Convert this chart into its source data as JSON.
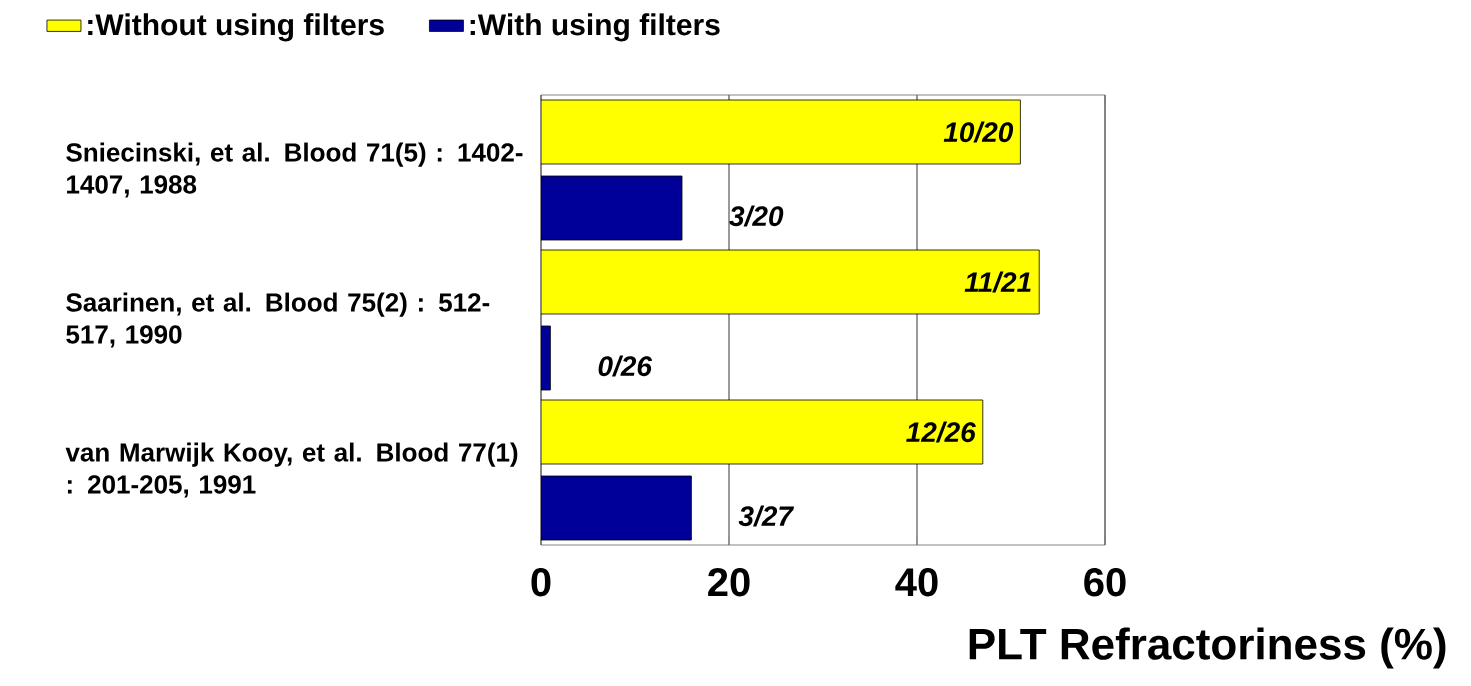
{
  "chart_data": {
    "type": "bar",
    "orientation": "horizontal",
    "xlabel": "PLT Refractoriness (%)",
    "categories": [
      "Sniecinski, et al. Blood 71(5) : 1402-1407, 1988",
      "Saarinen, et al. Blood 75(2) : 512-517, 1990",
      "van Marwijk Kooy, et al. Blood 77(1) : 201-205, 1991"
    ],
    "series": [
      {
        "name": ":Without using filters",
        "color": "#ffff00",
        "values": [
          51,
          53,
          47
        ],
        "value_labels": [
          "10/20",
          "11/21",
          "12/26"
        ]
      },
      {
        "name": ":With using filters",
        "color": "#000099",
        "values": [
          15,
          1,
          16
        ],
        "value_labels": [
          "3/20",
          "0/26",
          "3/27"
        ]
      }
    ],
    "xlim": [
      0,
      60
    ],
    "xticks": [
      0,
      20,
      40,
      60
    ],
    "grid": "x",
    "legend": "top left"
  }
}
